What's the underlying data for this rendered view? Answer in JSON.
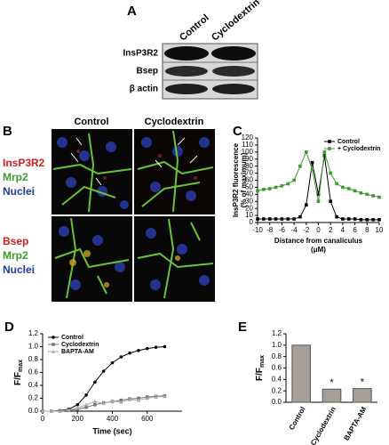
{
  "figure": {
    "panel_a": {
      "letter": "A",
      "columns": [
        "Control",
        "Cyclodextrin"
      ],
      "rows": [
        "InsP3R2",
        "Bsep",
        "β actin"
      ]
    },
    "panel_b": {
      "letter": "B",
      "columns": [
        "Control",
        "Cyclodextrin"
      ],
      "stains": [
        [
          "InsP3R2",
          "Mrp2",
          "Nuclei"
        ],
        [
          "Bsep",
          "Mrp2",
          "Nuclei"
        ]
      ]
    }
  },
  "chart_data": [
    {
      "panel": "C",
      "type": "line",
      "y_label": [
        "InsP3R2 fluorescence",
        "(% of maximum)"
      ],
      "x_label": [
        "Distance from canaliculus",
        "(μM)"
      ],
      "x": [
        -10,
        -9,
        -8,
        -7,
        -6,
        -5,
        -4,
        -3,
        -2,
        -1,
        0,
        1,
        2,
        3,
        4,
        5,
        6,
        7,
        8,
        9,
        10
      ],
      "series": [
        {
          "name": "Control",
          "color": "#000000",
          "marker": "square",
          "values": [
            5,
            5,
            5,
            5,
            5,
            5,
            5,
            8,
            25,
            85,
            40,
            95,
            30,
            8,
            5,
            5,
            5,
            4,
            4,
            4,
            4
          ]
        },
        {
          "name": "+ Cyclodextrin",
          "color": "#3c9a2c",
          "marker": "square",
          "values": [
            45,
            47,
            48,
            50,
            52,
            55,
            60,
            80,
            100,
            75,
            30,
            100,
            70,
            55,
            50,
            48,
            45,
            42,
            40,
            38,
            36
          ]
        }
      ],
      "xlim": [
        -10,
        10
      ],
      "xticks": [
        -10,
        -8,
        -6,
        -4,
        -2,
        0,
        2,
        4,
        6,
        8,
        10
      ],
      "ylim": [
        0,
        120
      ],
      "yticks": [
        0,
        10,
        20,
        30,
        40,
        50,
        60,
        70,
        80,
        90,
        100,
        110,
        120
      ],
      "legend": "upper right"
    },
    {
      "panel": "D",
      "type": "line",
      "y_label": "F/F",
      "y_label_sub": "max",
      "x_label": "Time (sec)",
      "x": [
        0,
        50,
        100,
        150,
        200,
        250,
        300,
        350,
        400,
        450,
        500,
        550,
        600,
        650,
        700
      ],
      "series": [
        {
          "name": "Control",
          "color": "#000000",
          "marker": "circle",
          "values": [
            0,
            0,
            0.01,
            0.03,
            0.1,
            0.25,
            0.45,
            0.62,
            0.75,
            0.84,
            0.9,
            0.94,
            0.97,
            0.99,
            1.0
          ]
        },
        {
          "name": "Cyclodextrin",
          "color": "#777777",
          "marker": "square",
          "values": [
            0,
            0,
            0,
            0.01,
            0.03,
            0.06,
            0.1,
            0.13,
            0.15,
            0.17,
            0.19,
            0.2,
            0.22,
            0.23,
            0.24
          ]
        },
        {
          "name": "BAPTA-AM",
          "color": "#aaaaaa",
          "marker": "triangle",
          "values": [
            0,
            0,
            0,
            0.02,
            0.05,
            0.1,
            0.15,
            0.12,
            0.16,
            0.14,
            0.18,
            0.17,
            0.2,
            0.22,
            0.23
          ]
        }
      ],
      "xlim": [
        0,
        800
      ],
      "xticks": [
        0,
        200,
        400,
        600
      ],
      "ylim": [
        0,
        1.2
      ],
      "yticks": [
        {
          "value": 0,
          "label": "0.0"
        },
        0.2,
        0.4,
        0.6,
        0.8,
        {
          "value": 1,
          "label": "1.0"
        },
        1.2
      ],
      "legend": "upper left"
    },
    {
      "panel": "E",
      "type": "bar",
      "y_label": "F/F",
      "y_label_sub": "max",
      "categories": [
        "Control",
        "Cyclodextrin",
        "BAPTA-AM"
      ],
      "values": [
        1.0,
        0.23,
        0.24
      ],
      "color": "#a59f98",
      "significance": [
        null,
        "*",
        "*"
      ],
      "ylim": [
        0,
        1.2
      ],
      "yticks": [
        {
          "value": 0,
          "label": "0.0"
        },
        0.2,
        0.4,
        0.6,
        0.8,
        {
          "value": 1,
          "label": "1.0"
        },
        1.2
      ]
    }
  ]
}
